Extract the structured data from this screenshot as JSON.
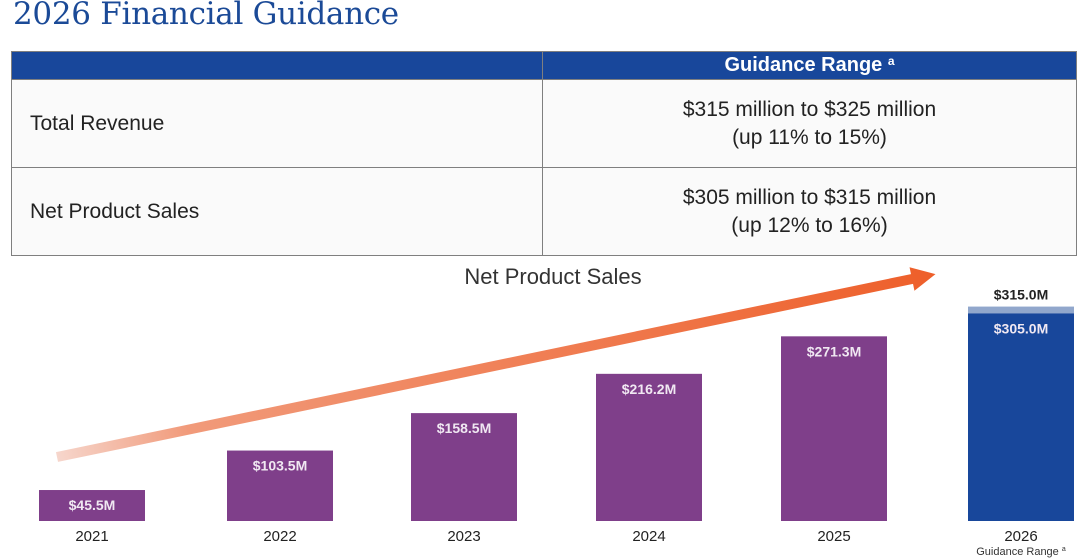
{
  "page": {
    "title": "2026 Financial Guidance"
  },
  "table": {
    "header_label": "",
    "header_value": "Guidance Range",
    "header_footnote": "a",
    "rows": [
      {
        "label": "Total Revenue",
        "line1": "$315 million to $325 million",
        "line2": "(up 11% to 15%)"
      },
      {
        "label": "Net Product Sales",
        "line1": "$305 million to $315 million",
        "line2": "(up 12% to 16%)"
      }
    ]
  },
  "colors": {
    "brand_blue": "#18479b",
    "bar_purple": "#7f3f8a",
    "guidance_high": "#91a7cc",
    "arrow_orange": "#ee6a35"
  },
  "chart_data": {
    "type": "bar",
    "title": "Net Product Sales",
    "xlabel": "",
    "ylabel": "",
    "ylim": [
      0,
      320
    ],
    "grid": false,
    "categories": [
      "2021",
      "2022",
      "2023",
      "2024",
      "2025",
      "2026"
    ],
    "values": [
      45.5,
      103.5,
      158.5,
      216.2,
      271.3,
      305.0
    ],
    "labels": [
      "$45.5M",
      "$103.5M",
      "$158.5M",
      "$216.2M",
      "$271.3M",
      "$305.0M"
    ],
    "guidance": {
      "category": "2026",
      "low": 305.0,
      "high": 315.0,
      "high_label": "$315.0M",
      "sublabel": "Guidance Range",
      "footnote": "a"
    },
    "annotations": [
      "growth trend arrow"
    ]
  }
}
